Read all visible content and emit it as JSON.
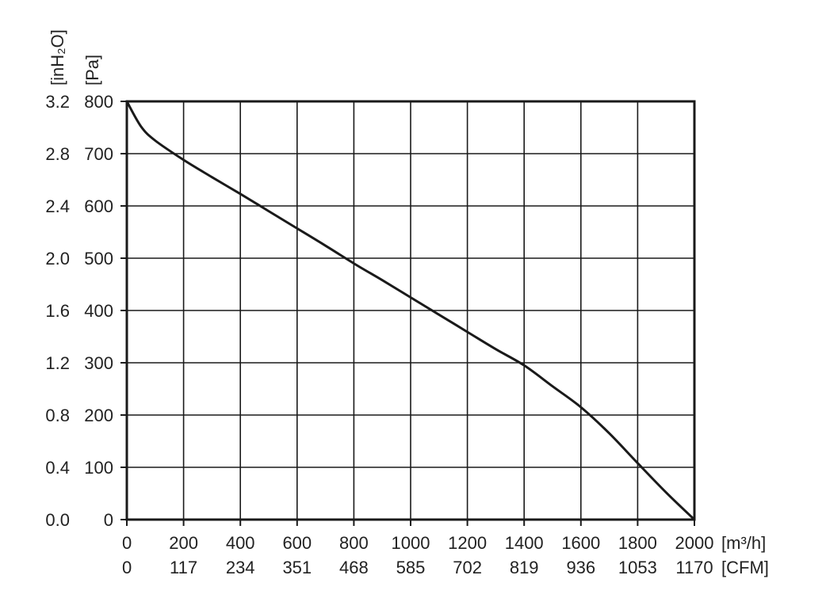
{
  "chart_data": {
    "type": "line",
    "x_unit_primary": "[m³/h]",
    "x_unit_secondary": "[CFM]",
    "y_unit_primary": "[Pa]",
    "y_unit_secondary": "[inH₂O]",
    "xlim": [
      0,
      2000
    ],
    "ylim": [
      0,
      800
    ],
    "x_ticks_primary": [
      "0",
      "200",
      "400",
      "600",
      "800",
      "1000",
      "1200",
      "1400",
      "1600",
      "1800",
      "2000"
    ],
    "x_ticks_secondary": [
      "0",
      "117",
      "234",
      "351",
      "468",
      "585",
      "702",
      "819",
      "936",
      "1053",
      "1170"
    ],
    "y_ticks_primary": [
      "0",
      "100",
      "200",
      "300",
      "400",
      "500",
      "600",
      "700",
      "800"
    ],
    "y_ticks_secondary": [
      "0.0",
      "0.4",
      "0.8",
      "1.2",
      "1.6",
      "2.0",
      "2.4",
      "2.8",
      "3.2"
    ],
    "grid": true,
    "colors": {
      "line": "#1a1a1a",
      "grid": "#1a1a1a",
      "frame": "#1a1a1a"
    },
    "series": [
      {
        "x": [
          0,
          50,
          100,
          200,
          300,
          400,
          500,
          600,
          700,
          800,
          900,
          1000,
          1100,
          1200,
          1300,
          1400,
          1500,
          1600,
          1700,
          1800,
          1900,
          2000
        ],
        "y": [
          800,
          752,
          725,
          688,
          655,
          623,
          590,
          557,
          524,
          490,
          458,
          425,
          392,
          359,
          326,
          295,
          255,
          215,
          165,
          108,
          52,
          0
        ]
      }
    ]
  }
}
